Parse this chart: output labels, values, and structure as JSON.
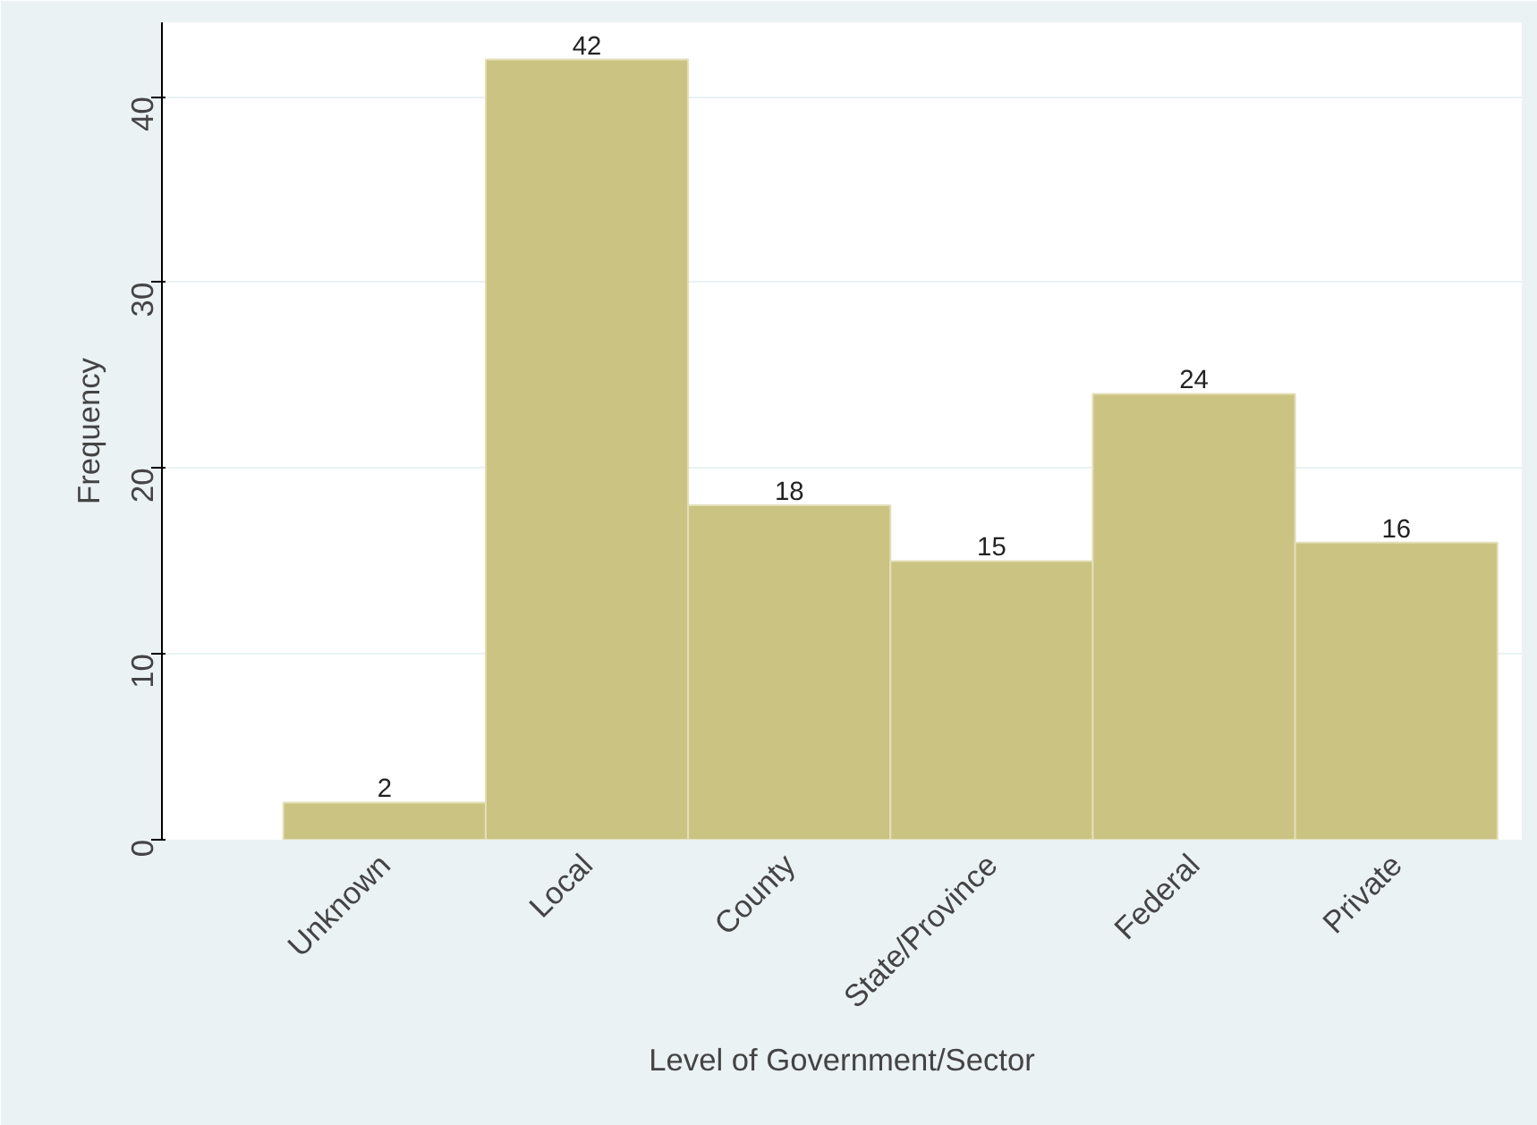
{
  "chart_data": {
    "type": "bar",
    "xlabel": "Level of Government/Sector",
    "ylabel": "Frequency",
    "categories": [
      "Unknown",
      "Local",
      "County",
      "State/Province",
      "Federal",
      "Private"
    ],
    "values": [
      2,
      42,
      18,
      15,
      24,
      16
    ],
    "color": "#cbc382",
    "data_labels": true,
    "grid": "y",
    "ylim": [
      0,
      44
    ],
    "yticks": [
      0,
      10,
      20,
      30,
      40
    ]
  }
}
